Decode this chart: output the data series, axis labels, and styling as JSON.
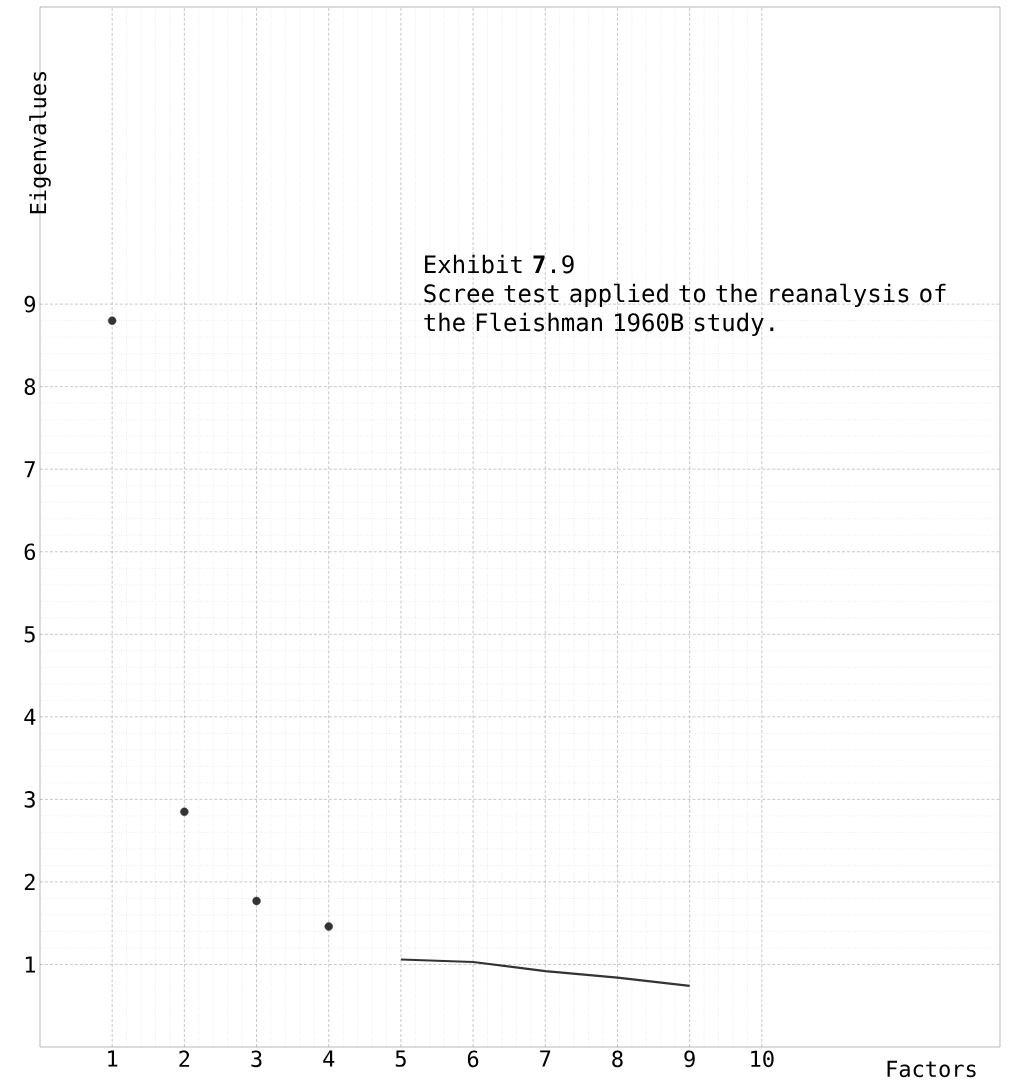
{
  "chart_data": {
    "type": "scatter",
    "title": "Exhibit **7**.9",
    "subtitle": "Scree test applied to the reanalysis of the Fleishman 1960B study.",
    "xlabel": "Factors",
    "ylabel": "Eigenvalues",
    "xlim": [
      0,
      13.3
    ],
    "ylim": [
      0,
      12.6
    ],
    "xticks": [
      1,
      2,
      3,
      4,
      5,
      6,
      7,
      8,
      9,
      10
    ],
    "yticks": [
      1,
      2,
      3,
      4,
      5,
      6,
      7,
      8,
      9
    ],
    "grid": true,
    "marker": "circle",
    "series": [
      {
        "type": "scatter",
        "color": "#333333",
        "x": [
          1,
          2,
          3,
          4
        ],
        "values": [
          8.8,
          2.85,
          1.77,
          1.46
        ]
      },
      {
        "type": "line",
        "color": "#333333",
        "marker": "none",
        "x": [
          5,
          6,
          7,
          8,
          9
        ],
        "values": [
          1.06,
          1.03,
          0.92,
          0.84,
          0.74
        ]
      }
    ]
  }
}
